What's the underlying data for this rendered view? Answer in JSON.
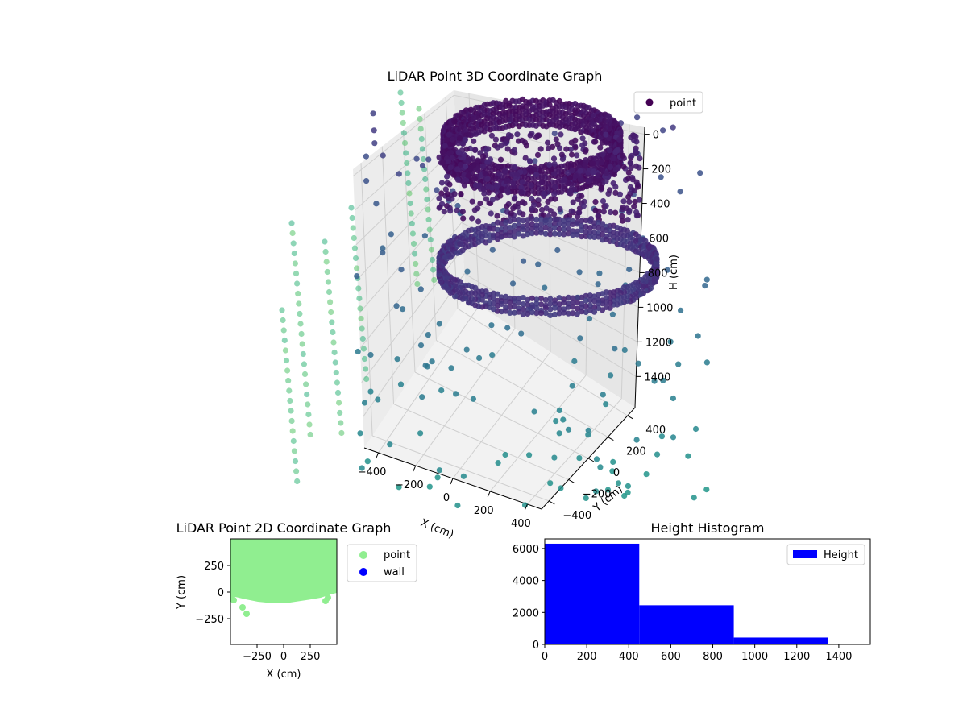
{
  "colors": {
    "point_2d": "#90ee90",
    "wall_2d": "#0000ff",
    "histogram_bar": "#0000ff",
    "scatter_3d_colormap": "viridis"
  },
  "chart_data": [
    {
      "type": "scatter",
      "projection": "3d",
      "title": "LiDAR Point 3D Coordinate Graph",
      "xlabel": "X (cm)",
      "ylabel": "Y (cm)",
      "zlabel": "H (cm)",
      "x_ticks": [
        "−400",
        "−200",
        "0",
        "200",
        "400"
      ],
      "y_ticks": [
        "−400",
        "−200",
        "0",
        "200",
        "400"
      ],
      "z_ticks": [
        "0",
        "200",
        "400",
        "600",
        "800",
        "1000",
        "1200",
        "1400"
      ],
      "xlim": [
        -480,
        480
      ],
      "ylim": [
        -480,
        480
      ],
      "zlim": [
        0,
        1500
      ],
      "z_inverted": true,
      "series": [
        {
          "name": "point"
        }
      ],
      "legend_position": "top-right",
      "colormap": "viridis",
      "grid": true
    },
    {
      "type": "scatter",
      "title": "LiDAR Point 2D Coordinate Graph",
      "xlabel": "X (cm)",
      "ylabel": "Y (cm)",
      "x_ticks": [
        "−250",
        "0",
        "250"
      ],
      "y_ticks": [
        "250",
        "0",
        "−250"
      ],
      "xlim": [
        -500,
        500
      ],
      "ylim": [
        -500,
        500
      ],
      "series": [
        {
          "name": "point",
          "color": "#90ee90"
        },
        {
          "name": "wall",
          "color": "#0000ff"
        }
      ],
      "legend_position": "outside-right",
      "grid": false
    },
    {
      "type": "bar",
      "title": "Height Histogram",
      "bins": [
        {
          "from": 0,
          "to": 450,
          "count": 6300
        },
        {
          "from": 450,
          "to": 900,
          "count": 2450
        },
        {
          "from": 900,
          "to": 1350,
          "count": 430
        },
        {
          "from": 1350,
          "to": 1550,
          "count": 30
        }
      ],
      "x_ticks": [
        "0",
        "200",
        "400",
        "600",
        "800",
        "1000",
        "1200",
        "1400"
      ],
      "y_ticks": [
        "0",
        "2000",
        "4000",
        "6000"
      ],
      "xlim": [
        0,
        1550
      ],
      "ylim": [
        0,
        6600
      ],
      "series": [
        {
          "name": "Height",
          "color": "#0000ff"
        }
      ],
      "legend_position": "top-right",
      "grid": false
    }
  ]
}
